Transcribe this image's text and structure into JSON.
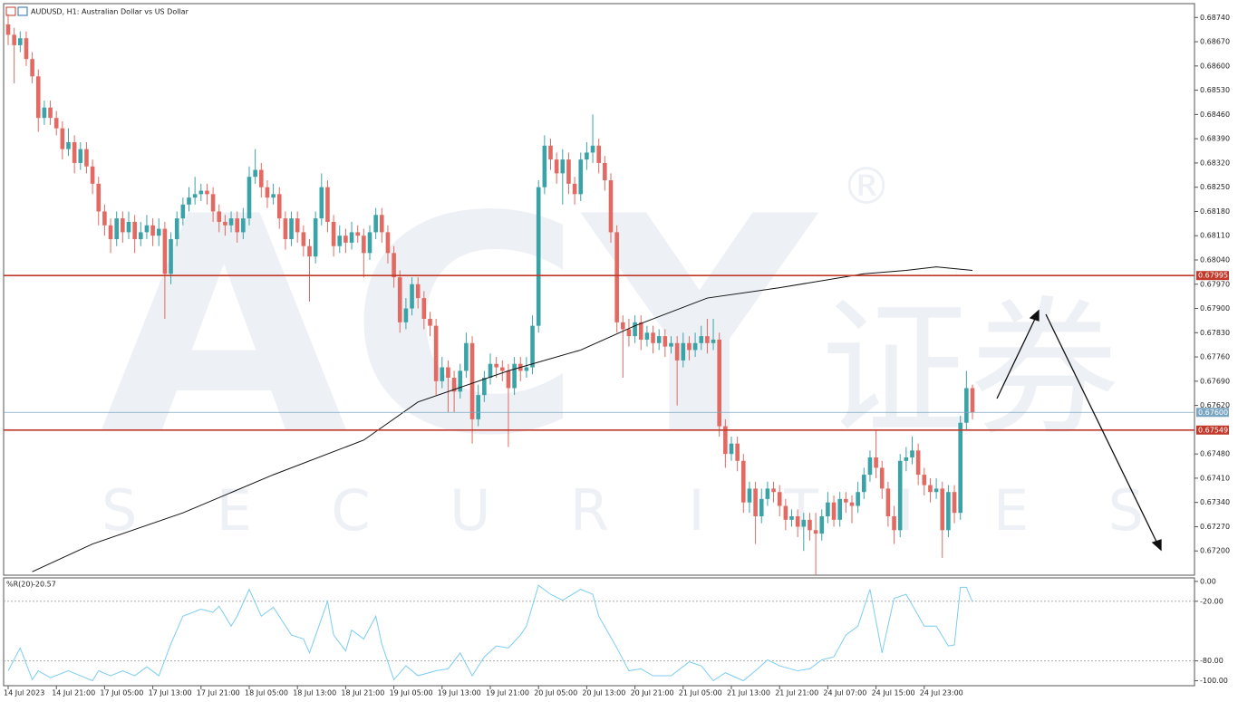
{
  "chart_data": [
    {
      "type": "candlestick",
      "title": "AUDUSD, H1:  Australian Dollar vs US Dollar",
      "up_color": "#3aa3a8",
      "down_color": "#e26a62",
      "categories": [
        "14 Jul 2023",
        null,
        null,
        null,
        null,
        null,
        null,
        null,
        "14 Jul 21:00",
        null,
        null,
        null,
        null,
        null,
        null,
        null,
        "17 Jul 05:00",
        null,
        null,
        null,
        null,
        null,
        null,
        null,
        "17 Jul 13:00",
        null,
        null,
        null,
        null,
        null,
        null,
        null,
        "17 Jul 21:00",
        null,
        null,
        null,
        null,
        null,
        null,
        null,
        "18 Jul 05:00",
        null,
        null,
        null,
        null,
        null,
        null,
        null,
        "18 Jul 13:00",
        null,
        null,
        null,
        null,
        null,
        null,
        null,
        "18 Jul 21:00",
        null,
        null,
        null,
        null,
        null,
        null,
        null,
        "19 Jul 05:00",
        null,
        null,
        null,
        null,
        null,
        null,
        null,
        "19 Jul 13:00",
        null,
        null,
        null,
        null,
        null,
        null,
        null,
        "19 Jul 21:00",
        null,
        null,
        null,
        null,
        null,
        null,
        null,
        "20 Jul 05:00",
        null,
        null,
        null,
        null,
        null,
        null,
        null,
        "20 Jul 13:00",
        null,
        null,
        null,
        null,
        null,
        null,
        null,
        "20 Jul 21:00",
        null,
        null,
        null,
        null,
        null,
        null,
        null,
        "21 Jul 05:00",
        null,
        null,
        null,
        null,
        null,
        null,
        null,
        "21 Jul 13:00",
        null,
        null,
        null,
        null,
        null,
        null,
        null,
        "21 Jul 21:00",
        null,
        null,
        null,
        null,
        null,
        null,
        null,
        "24 Jul 07:00",
        null,
        null,
        null,
        null,
        null,
        null,
        null,
        "24 Jul 15:00",
        null,
        null,
        null,
        null,
        null,
        null,
        null,
        "24 Jul 23:00",
        null,
        null,
        null,
        null,
        null,
        null,
        null,
        null
      ],
      "open": [
        0.6872,
        0.6869,
        0.6866,
        0.6868,
        0.6862,
        0.6857,
        0.6845,
        0.6848,
        0.6845,
        0.6842,
        0.6836,
        0.6838,
        0.6832,
        0.6836,
        0.6831,
        0.6826,
        0.6818,
        0.6814,
        0.681,
        0.6816,
        0.6812,
        0.6815,
        0.681,
        0.6812,
        0.6814,
        0.6811,
        0.6813,
        0.68,
        0.681,
        0.6816,
        0.682,
        0.6822,
        0.6823,
        0.6824,
        0.6823,
        0.6818,
        0.6815,
        0.6814,
        0.6816,
        0.6812,
        0.6816,
        0.6828,
        0.683,
        0.6825,
        0.6822,
        0.6823,
        0.6816,
        0.681,
        0.6816,
        0.6812,
        0.6808,
        0.6805,
        0.6816,
        0.6825,
        0.6815,
        0.6808,
        0.6811,
        0.6809,
        0.6812,
        0.6811,
        0.6806,
        0.6812,
        0.6817,
        0.6812,
        0.6806,
        0.6799,
        0.6786,
        0.679,
        0.6797,
        0.6793,
        0.6787,
        0.6785,
        0.6769,
        0.6773,
        0.677,
        0.6766,
        0.6772,
        0.678,
        0.6758,
        0.6765,
        0.677,
        0.6774,
        0.6773,
        0.6772,
        0.6767,
        0.6774,
        0.6772,
        0.6773,
        0.6785,
        0.6825,
        0.6837,
        0.6833,
        0.6829,
        0.6833,
        0.6826,
        0.6823,
        0.6833,
        0.6835,
        0.6837,
        0.6832,
        0.6827,
        0.6812,
        0.6786,
        0.6784,
        0.6782,
        0.6786,
        0.6781,
        0.6783,
        0.678,
        0.6782,
        0.6779,
        0.678,
        0.6775,
        0.678,
        0.6778,
        0.678,
        0.6782,
        0.678,
        0.6781,
        0.6756,
        0.6748,
        0.6751,
        0.6746,
        0.6734,
        0.6738,
        0.673,
        0.6735,
        0.6738,
        0.6737,
        0.6733,
        0.6729,
        0.673,
        0.6727,
        0.6729,
        0.6726,
        0.6725,
        0.673,
        0.6734,
        0.6729,
        0.6735,
        0.6734,
        0.6733,
        0.6737,
        0.6742,
        0.6747,
        0.6744,
        0.6738,
        0.673,
        0.6726,
        0.6746,
        0.6747,
        0.6749,
        0.6742,
        0.6739,
        0.6737,
        0.6738,
        0.6726,
        0.6737,
        0.6731,
        0.6757,
        0.6767
      ],
      "high": [
        0.6875,
        0.6871,
        0.687,
        0.687,
        0.6864,
        0.6859,
        0.685,
        0.685,
        0.6847,
        0.6844,
        0.6842,
        0.684,
        0.6838,
        0.6838,
        0.6833,
        0.6828,
        0.682,
        0.6816,
        0.6818,
        0.6818,
        0.6818,
        0.6817,
        0.6815,
        0.6817,
        0.6816,
        0.6816,
        0.6815,
        0.6812,
        0.6818,
        0.6822,
        0.6825,
        0.6828,
        0.6826,
        0.6826,
        0.6825,
        0.682,
        0.6817,
        0.6818,
        0.6818,
        0.6819,
        0.6831,
        0.6836,
        0.6832,
        0.6827,
        0.6826,
        0.6825,
        0.6818,
        0.6818,
        0.6818,
        0.6814,
        0.681,
        0.6818,
        0.6829,
        0.6827,
        0.6817,
        0.6814,
        0.6813,
        0.6815,
        0.6814,
        0.6813,
        0.6814,
        0.6819,
        0.6819,
        0.6814,
        0.6808,
        0.6801,
        0.6793,
        0.6799,
        0.6799,
        0.6795,
        0.6789,
        0.6787,
        0.6776,
        0.6775,
        0.6772,
        0.6774,
        0.6783,
        0.6782,
        0.6768,
        0.6772,
        0.6777,
        0.6776,
        0.6775,
        0.6774,
        0.6776,
        0.6776,
        0.6776,
        0.6788,
        0.6827,
        0.684,
        0.6839,
        0.6835,
        0.6836,
        0.6835,
        0.6828,
        0.6835,
        0.6838,
        0.6846,
        0.6839,
        0.6834,
        0.6829,
        0.6814,
        0.6788,
        0.6787,
        0.6788,
        0.6788,
        0.6785,
        0.6785,
        0.6784,
        0.6784,
        0.6782,
        0.6782,
        0.6783,
        0.6782,
        0.6783,
        0.6785,
        0.6787,
        0.6787,
        0.6783,
        0.6758,
        0.6753,
        0.6753,
        0.6748,
        0.674,
        0.674,
        0.6738,
        0.674,
        0.674,
        0.6739,
        0.6735,
        0.6732,
        0.6732,
        0.6731,
        0.6731,
        0.6731,
        0.6732,
        0.6737,
        0.6736,
        0.6737,
        0.6737,
        0.6736,
        0.674,
        0.6744,
        0.6749,
        0.6755,
        0.6746,
        0.674,
        0.6733,
        0.6748,
        0.675,
        0.6753,
        0.6751,
        0.6744,
        0.6741,
        0.6741,
        0.674,
        0.6739,
        0.6739,
        0.6759,
        0.6772,
        0.6768
      ],
      "low": [
        0.6866,
        0.6855,
        0.6864,
        0.686,
        0.6855,
        0.6841,
        0.6843,
        0.6843,
        0.684,
        0.6833,
        0.6834,
        0.6829,
        0.683,
        0.6829,
        0.6823,
        0.6814,
        0.6811,
        0.6806,
        0.6808,
        0.6809,
        0.681,
        0.6806,
        0.6808,
        0.681,
        0.6808,
        0.6808,
        0.6787,
        0.6797,
        0.6808,
        0.6814,
        0.6818,
        0.682,
        0.6821,
        0.682,
        0.6815,
        0.6812,
        0.6811,
        0.6812,
        0.6809,
        0.681,
        0.6814,
        0.6826,
        0.6822,
        0.6819,
        0.682,
        0.6813,
        0.6807,
        0.6808,
        0.6809,
        0.6805,
        0.6792,
        0.6803,
        0.6814,
        0.6812,
        0.6805,
        0.6806,
        0.6806,
        0.6807,
        0.6809,
        0.6799,
        0.6804,
        0.681,
        0.6809,
        0.6803,
        0.6796,
        0.6783,
        0.6784,
        0.6788,
        0.679,
        0.6784,
        0.6782,
        0.6765,
        0.6767,
        0.676,
        0.676,
        0.6764,
        0.677,
        0.6751,
        0.6756,
        0.6763,
        0.6768,
        0.677,
        0.6769,
        0.675,
        0.6765,
        0.6769,
        0.677,
        0.6771,
        0.6783,
        0.6823,
        0.683,
        0.6826,
        0.682,
        0.6823,
        0.682,
        0.6821,
        0.683,
        0.6832,
        0.6829,
        0.6824,
        0.6809,
        0.6783,
        0.677,
        0.6779,
        0.678,
        0.6778,
        0.6779,
        0.6777,
        0.6778,
        0.6776,
        0.6777,
        0.6762,
        0.6773,
        0.6775,
        0.6776,
        0.6778,
        0.6777,
        0.6778,
        0.6753,
        0.6744,
        0.6746,
        0.6743,
        0.6731,
        0.6731,
        0.6722,
        0.6728,
        0.6733,
        0.6734,
        0.673,
        0.6726,
        0.6727,
        0.6724,
        0.672,
        0.6723,
        0.6713,
        0.6723,
        0.6728,
        0.6727,
        0.6727,
        0.6731,
        0.6728,
        0.6731,
        0.6735,
        0.674,
        0.6741,
        0.6735,
        0.6727,
        0.6722,
        0.6724,
        0.6743,
        0.6745,
        0.6739,
        0.6736,
        0.6734,
        0.6735,
        0.6718,
        0.6724,
        0.6728,
        0.6729,
        0.6755,
        0.6758
      ],
      "close": [
        0.6869,
        0.6866,
        0.6868,
        0.6862,
        0.6857,
        0.6845,
        0.6848,
        0.6845,
        0.6842,
        0.6836,
        0.6838,
        0.6832,
        0.6836,
        0.6831,
        0.6826,
        0.6818,
        0.6814,
        0.681,
        0.6816,
        0.6812,
        0.6815,
        0.681,
        0.6812,
        0.6814,
        0.6811,
        0.6813,
        0.68,
        0.681,
        0.6816,
        0.682,
        0.6822,
        0.6823,
        0.6824,
        0.6823,
        0.6818,
        0.6815,
        0.6814,
        0.6816,
        0.6812,
        0.6816,
        0.6828,
        0.683,
        0.6825,
        0.6822,
        0.6823,
        0.6816,
        0.681,
        0.6816,
        0.6812,
        0.6808,
        0.6805,
        0.6816,
        0.6825,
        0.6815,
        0.6808,
        0.6811,
        0.6809,
        0.6812,
        0.6811,
        0.6806,
        0.6812,
        0.6817,
        0.6812,
        0.6806,
        0.6799,
        0.6786,
        0.679,
        0.6797,
        0.6793,
        0.6787,
        0.6785,
        0.6769,
        0.6773,
        0.677,
        0.6766,
        0.6772,
        0.678,
        0.6758,
        0.6765,
        0.677,
        0.6774,
        0.6773,
        0.6772,
        0.6767,
        0.6774,
        0.6772,
        0.6773,
        0.6785,
        0.6825,
        0.6837,
        0.6833,
        0.6829,
        0.6833,
        0.6826,
        0.6823,
        0.6833,
        0.6835,
        0.6837,
        0.6832,
        0.6827,
        0.6812,
        0.6786,
        0.6784,
        0.6782,
        0.6786,
        0.6781,
        0.6783,
        0.678,
        0.6782,
        0.6779,
        0.678,
        0.6775,
        0.678,
        0.6778,
        0.678,
        0.6782,
        0.678,
        0.6781,
        0.6756,
        0.6748,
        0.6751,
        0.6746,
        0.6734,
        0.6738,
        0.673,
        0.6735,
        0.6738,
        0.6737,
        0.6733,
        0.6729,
        0.673,
        0.6727,
        0.6729,
        0.6726,
        0.6725,
        0.673,
        0.6734,
        0.6729,
        0.6735,
        0.6734,
        0.6733,
        0.6737,
        0.6742,
        0.6747,
        0.6744,
        0.6738,
        0.673,
        0.6726,
        0.6746,
        0.6747,
        0.6749,
        0.6742,
        0.6739,
        0.6737,
        0.6738,
        0.6726,
        0.6737,
        0.6731,
        0.6757,
        0.6767,
        0.676
      ],
      "ma": {
        "color": "#111111",
        "x": [
          4,
          14,
          29,
          44,
          59,
          68,
          83,
          95,
          104,
          116,
          128,
          142,
          149,
          154,
          160
        ],
        "values": [
          0.6714,
          0.6722,
          0.6731,
          0.6742,
          0.6752,
          0.6763,
          0.6772,
          0.6778,
          0.6785,
          0.6793,
          0.6796,
          0.68,
          0.6801,
          0.6802,
          0.6801
        ]
      },
      "hlines": [
        {
          "value": 0.67995,
          "label": "0.67995",
          "color": "#c0392b"
        },
        {
          "value": 0.67549,
          "label": "0.67549",
          "color": "#c0392b"
        },
        {
          "value": 0.676,
          "label": "0.67600",
          "color": "#7aa6c2",
          "thin": true
        }
      ],
      "ylim": [
        0.6713,
        0.6878
      ],
      "yticks": [
        {
          "value": 0.6874,
          "label": "0.68740"
        },
        {
          "value": 0.6867,
          "label": "0.68670"
        },
        {
          "value": 0.686,
          "label": "0.68600"
        },
        {
          "value": 0.6853,
          "label": "0.68530"
        },
        {
          "value": 0.6846,
          "label": "0.68460"
        },
        {
          "value": 0.6839,
          "label": "0.68390"
        },
        {
          "value": 0.6832,
          "label": "0.68320"
        },
        {
          "value": 0.6825,
          "label": "0.68250"
        },
        {
          "value": 0.6818,
          "label": "0.68180"
        },
        {
          "value": 0.6811,
          "label": "0.68110"
        },
        {
          "value": 0.6804,
          "label": "0.68040"
        },
        {
          "value": 0.6797,
          "label": "0.67970"
        },
        {
          "value": 0.679,
          "label": "0.67900"
        },
        {
          "value": 0.6783,
          "label": "0.67830"
        },
        {
          "value": 0.6776,
          "label": "0.67760"
        },
        {
          "value": 0.6769,
          "label": "0.67690"
        },
        {
          "value": 0.6762,
          "label": "0.67620"
        },
        {
          "value": 0.6748,
          "label": "0.67480"
        },
        {
          "value": 0.6741,
          "label": "0.67410"
        },
        {
          "value": 0.6734,
          "label": "0.67340"
        },
        {
          "value": 0.6727,
          "label": "0.67270"
        },
        {
          "value": 0.672,
          "label": "0.67200"
        }
      ],
      "watermark": {
        "logo": "ACY",
        "cjk": "证券",
        "word": "SECURITIES",
        "mark": "®"
      }
    },
    {
      "type": "line",
      "title": "%R(20)",
      "color": "#7ccdf0",
      "x": [
        0,
        2,
        4,
        5,
        7,
        10,
        12,
        14,
        15,
        17,
        19,
        21,
        23,
        25,
        27,
        29,
        32,
        34,
        35,
        37,
        38,
        40,
        42,
        44,
        47,
        49,
        50,
        53,
        54,
        56,
        57,
        59,
        61,
        62,
        64,
        66,
        68,
        71,
        73,
        75,
        77,
        79,
        81,
        83,
        85,
        86,
        88,
        90,
        92,
        95,
        97,
        98,
        101,
        103,
        105,
        107,
        110,
        113,
        115,
        117,
        119,
        122,
        124,
        126,
        128,
        131,
        133,
        135,
        137,
        139,
        141,
        143,
        145,
        147,
        149,
        152,
        154,
        156,
        157,
        158,
        159,
        160
      ],
      "values": [
        -90,
        -67,
        -99,
        -90,
        -97,
        -90,
        -95,
        -100,
        -90,
        -95,
        -90,
        -95,
        -86,
        -95,
        -63,
        -35,
        -28,
        -31,
        -25,
        -45,
        -35,
        -8,
        -35,
        -26,
        -54,
        -58,
        -72,
        -20,
        -54,
        -70,
        -49,
        -58,
        -35,
        -63,
        -99,
        -85,
        -95,
        -90,
        -88,
        -72,
        -95,
        -76,
        -65,
        -67,
        -54,
        -45,
        -4,
        -13,
        -19,
        -8,
        -13,
        -35,
        -67,
        -90,
        -88,
        -95,
        -95,
        -81,
        -85,
        -100,
        -92,
        -100,
        -90,
        -79,
        -85,
        -90,
        -88,
        -79,
        -76,
        -54,
        -45,
        -8,
        -72,
        -17,
        -13,
        -45,
        -45,
        -65,
        -64,
        -6,
        -6,
        -20.57
      ],
      "ylim": [
        -105,
        3.5
      ],
      "yticks": [
        {
          "value": 0,
          "label": "0.00"
        },
        {
          "value": -20,
          "label": "-20.00"
        },
        {
          "value": -80,
          "label": "-80.00"
        },
        {
          "value": -100,
          "label": "-100.00"
        }
      ],
      "levels": [
        -20,
        -80
      ]
    }
  ]
}
